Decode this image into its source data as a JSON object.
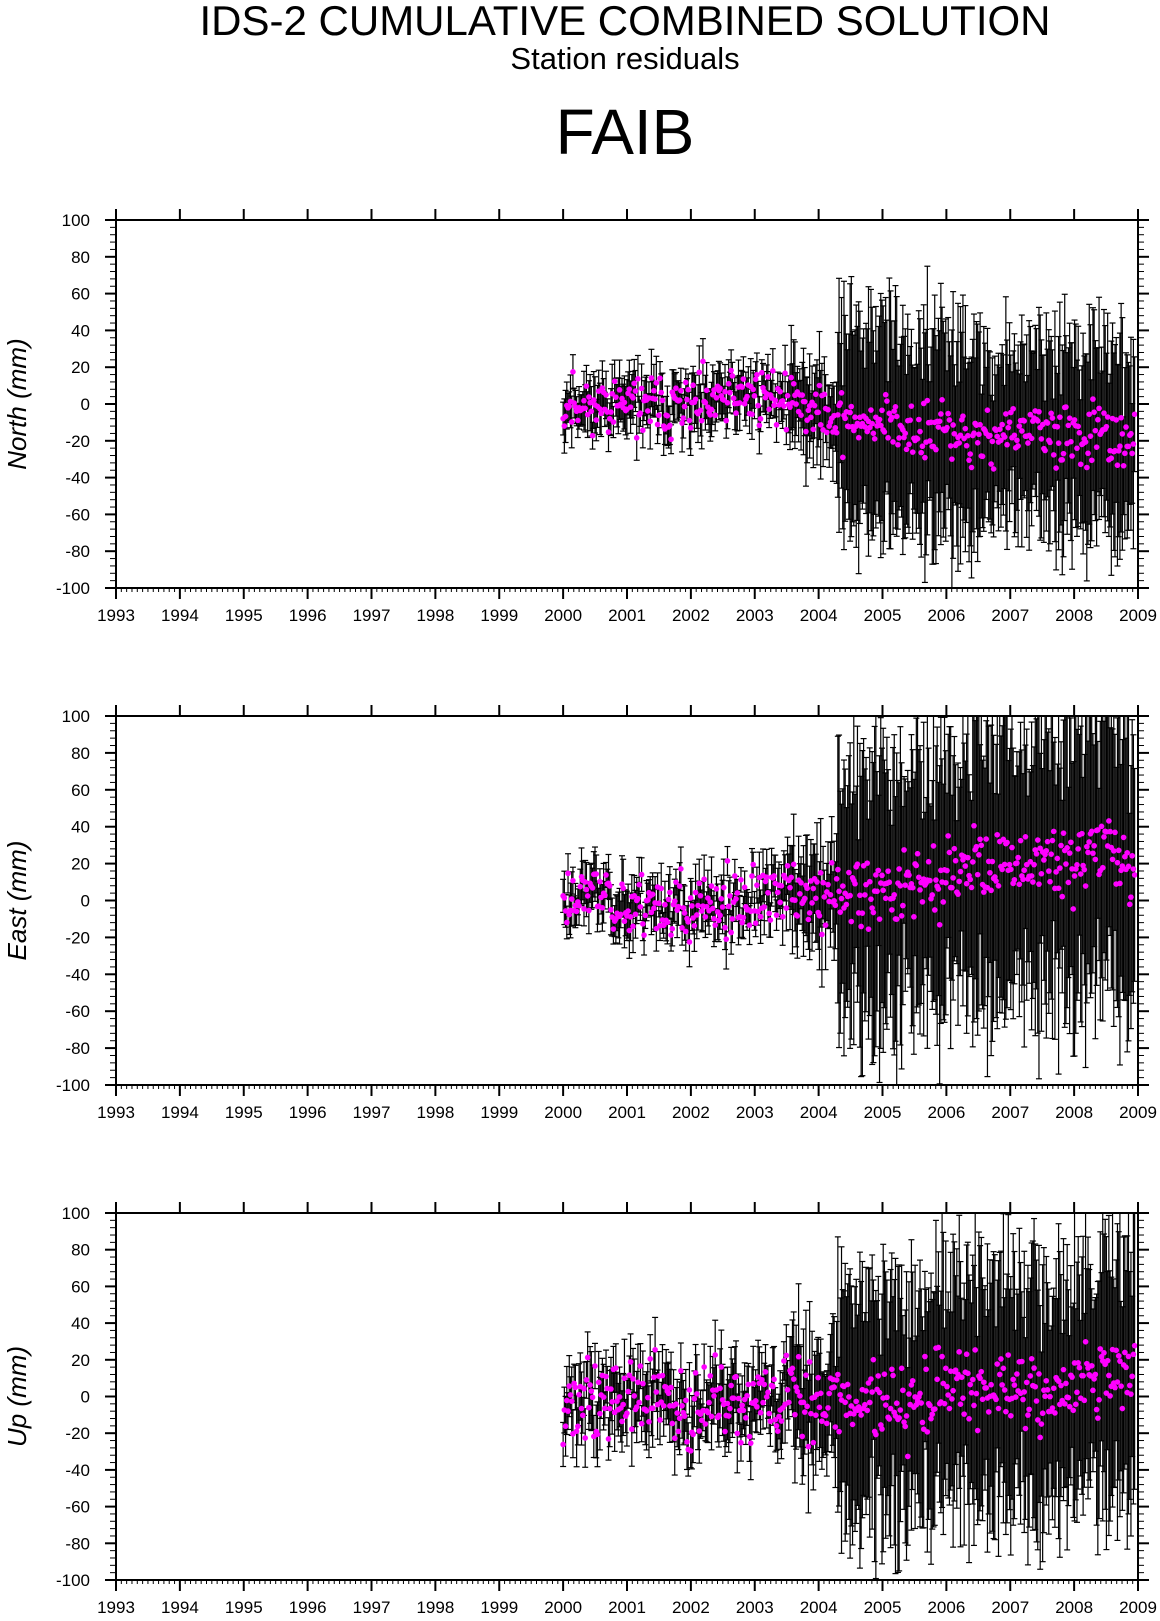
{
  "page": {
    "title": "IDS-2 CUMULATIVE COMBINED SOLUTION",
    "subtitle": "Station residuals",
    "station": "FAIB"
  },
  "colors": {
    "point": "#ff00ff",
    "errorbar": "#000000",
    "axis": "#000000"
  },
  "chart_data": [
    {
      "type": "scatter",
      "ylabel": "North (mm)",
      "xlim": [
        1993,
        2009
      ],
      "ylim": [
        -100,
        100
      ],
      "xticks": [
        1993,
        1994,
        1995,
        1996,
        1997,
        1998,
        1999,
        2000,
        2001,
        2002,
        2003,
        2004,
        2005,
        2006,
        2007,
        2008,
        2009
      ],
      "yticks": [
        -100,
        -80,
        -60,
        -40,
        -20,
        0,
        20,
        40,
        60,
        80,
        100
      ],
      "error_profile": [
        {
          "until": 2003.55,
          "sigma": 12
        },
        {
          "until": 2004.3,
          "sigma": 22
        },
        {
          "until": 2006.3,
          "sigma": 55
        },
        {
          "until": 2009.0,
          "sigma": 48
        }
      ],
      "trend": [
        [
          2000.0,
          0
        ],
        [
          2001.0,
          0
        ],
        [
          2002.0,
          -2
        ],
        [
          2003.0,
          6
        ],
        [
          2003.8,
          0
        ],
        [
          2004.5,
          -10
        ],
        [
          2005.0,
          -8
        ],
        [
          2005.6,
          -18
        ],
        [
          2006.0,
          -14
        ],
        [
          2006.5,
          -20
        ],
        [
          2007.0,
          -15
        ],
        [
          2008.0,
          -17
        ],
        [
          2008.9,
          -18
        ]
      ],
      "noise": 8,
      "seed": 11
    },
    {
      "type": "scatter",
      "ylabel": "East (mm)",
      "xlim": [
        1993,
        2009
      ],
      "ylim": [
        -100,
        100
      ],
      "xticks": [
        1993,
        1994,
        1995,
        1996,
        1997,
        1998,
        1999,
        2000,
        2001,
        2002,
        2003,
        2004,
        2005,
        2006,
        2007,
        2008,
        2009
      ],
      "yticks": [
        -100,
        -80,
        -60,
        -40,
        -20,
        0,
        20,
        40,
        60,
        80,
        100
      ],
      "error_profile": [
        {
          "until": 2003.55,
          "sigma": 12
        },
        {
          "until": 2004.3,
          "sigma": 25
        },
        {
          "until": 2006.3,
          "sigma": 70
        },
        {
          "until": 2009.0,
          "sigma": 80
        }
      ],
      "trend": [
        [
          2000.0,
          0
        ],
        [
          2000.5,
          5
        ],
        [
          2001.0,
          -2
        ],
        [
          2002.0,
          -5
        ],
        [
          2003.0,
          -2
        ],
        [
          2003.5,
          5
        ],
        [
          2004.0,
          0
        ],
        [
          2004.5,
          5
        ],
        [
          2005.0,
          5
        ],
        [
          2005.5,
          12
        ],
        [
          2006.0,
          8
        ],
        [
          2006.5,
          20
        ],
        [
          2007.0,
          18
        ],
        [
          2008.0,
          22
        ],
        [
          2008.6,
          30
        ],
        [
          2009.0,
          10
        ]
      ],
      "noise": 9,
      "seed": 23
    },
    {
      "type": "scatter",
      "ylabel": "Up (mm)",
      "xlim": [
        1993,
        2009
      ],
      "ylim": [
        -100,
        100
      ],
      "xticks": [
        1993,
        1994,
        1995,
        1996,
        1997,
        1998,
        1999,
        2000,
        2001,
        2002,
        2003,
        2004,
        2005,
        2006,
        2007,
        2008,
        2009
      ],
      "yticks": [
        -100,
        -80,
        -60,
        -40,
        -20,
        0,
        20,
        40,
        60,
        80,
        100
      ],
      "error_profile": [
        {
          "until": 2003.55,
          "sigma": 16
        },
        {
          "until": 2004.3,
          "sigma": 30
        },
        {
          "until": 2006.3,
          "sigma": 65
        },
        {
          "until": 2009.0,
          "sigma": 65
        }
      ],
      "trend": [
        [
          2000.0,
          -5
        ],
        [
          2001.0,
          0
        ],
        [
          2002.0,
          -5
        ],
        [
          2003.0,
          -3
        ],
        [
          2004.0,
          0
        ],
        [
          2005.0,
          -2
        ],
        [
          2006.0,
          5
        ],
        [
          2007.0,
          3
        ],
        [
          2008.0,
          5
        ],
        [
          2008.7,
          20
        ],
        [
          2009.0,
          8
        ]
      ],
      "noise": 11,
      "seed": 37
    }
  ]
}
